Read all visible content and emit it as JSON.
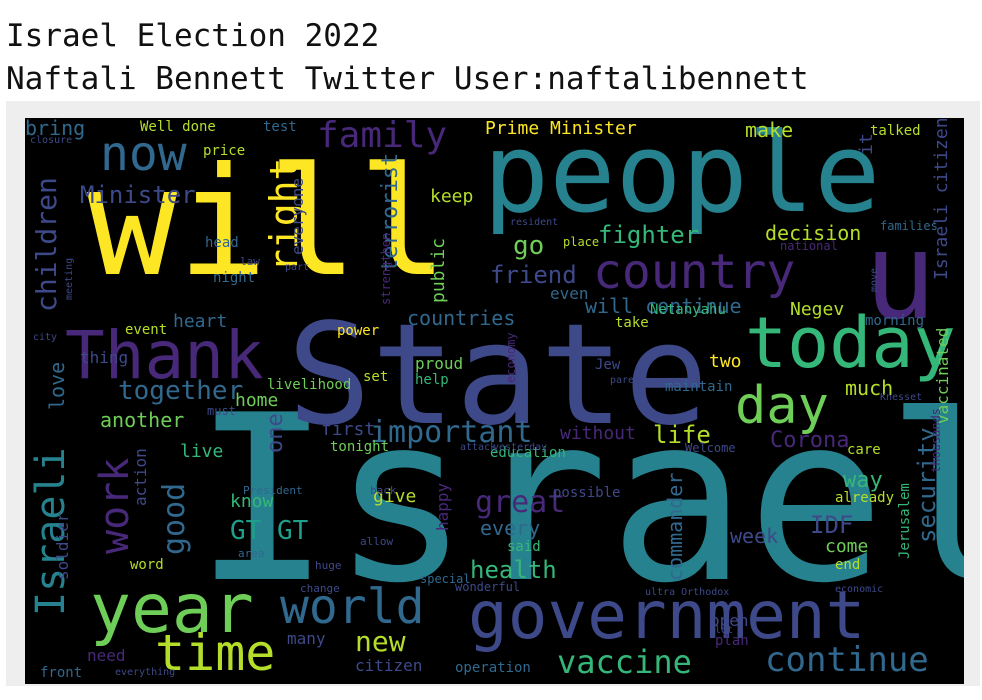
{
  "header": {
    "title_line1": "Israel Election 2022",
    "title_line2": "Naftali Bennett Twitter User:naftalibennett"
  },
  "palette": {
    "yellow": "#fde725",
    "lime": "#b5de2b",
    "green": "#6ece58",
    "teal_green": "#35b779",
    "teal": "#1f9e89",
    "cyan": "#26828e",
    "blue": "#31688e",
    "indigo": "#3e4989",
    "purple": "#482878",
    "dark_purple": "#440154"
  },
  "wordcloud": {
    "words": [
      {
        "text": "Israel",
        "color": "#26828e"
      },
      {
        "text": "State",
        "color": "#3e4989"
      },
      {
        "text": "will",
        "color": "#fde725"
      },
      {
        "text": "people",
        "color": "#26828e"
      },
      {
        "text": "government",
        "color": "#3e4989"
      },
      {
        "text": "u",
        "color": "#482878"
      },
      {
        "text": "Thank",
        "color": "#482878"
      },
      {
        "text": "today",
        "color": "#35b779"
      },
      {
        "text": "year",
        "color": "#6ece58"
      },
      {
        "text": "country",
        "color": "#482878"
      },
      {
        "text": "day",
        "color": "#6ece58"
      },
      {
        "text": "world",
        "color": "#31688e"
      },
      {
        "text": "time",
        "color": "#b5de2b"
      },
      {
        "text": "Israeli",
        "color": "#26828e"
      },
      {
        "text": "right",
        "color": "#fde725"
      },
      {
        "text": "now",
        "color": "#31688e"
      },
      {
        "text": "family",
        "color": "#482878"
      },
      {
        "text": "work",
        "color": "#482878"
      },
      {
        "text": "continue",
        "color": "#31688e"
      },
      {
        "text": "vaccine",
        "color": "#35b779"
      },
      {
        "text": "important",
        "color": "#31688e"
      },
      {
        "text": "together",
        "color": "#31688e"
      },
      {
        "text": "children",
        "color": "#3e4989"
      },
      {
        "text": "Minister",
        "color": "#3e4989"
      },
      {
        "text": "good",
        "color": "#31688e"
      },
      {
        "text": "new",
        "color": "#b5de2b"
      },
      {
        "text": "fighter",
        "color": "#35b779"
      },
      {
        "text": "decision",
        "color": "#b5de2b"
      },
      {
        "text": "security",
        "color": "#31688e"
      },
      {
        "text": "IDF",
        "color": "#3e4989"
      },
      {
        "text": "Corona",
        "color": "#482878"
      },
      {
        "text": "life",
        "color": "#b5de2b"
      },
      {
        "text": "great",
        "color": "#482878"
      },
      {
        "text": "health",
        "color": "#35b779"
      },
      {
        "text": "will continue",
        "color": "#31688e"
      },
      {
        "text": "Prime Minister",
        "color": "#fde725"
      },
      {
        "text": "friend",
        "color": "#3e4989"
      },
      {
        "text": "terrorist",
        "color": "#31688e"
      },
      {
        "text": "go",
        "color": "#6ece58"
      },
      {
        "text": "way",
        "color": "#35b779"
      },
      {
        "text": "one",
        "color": "#3e4989"
      },
      {
        "text": "GT GT",
        "color": "#1f9e89"
      },
      {
        "text": "commander",
        "color": "#31688e"
      },
      {
        "text": "countries",
        "color": "#31688e"
      },
      {
        "text": "much",
        "color": "#b5de2b"
      },
      {
        "text": "two",
        "color": "#fde725"
      },
      {
        "text": "another",
        "color": "#6ece58"
      },
      {
        "text": "first",
        "color": "#3e4989"
      },
      {
        "text": "Israeli citizen",
        "color": "#3e4989"
      },
      {
        "text": "vaccinated",
        "color": "#6ece58"
      },
      {
        "text": "love",
        "color": "#31688e"
      },
      {
        "text": "home",
        "color": "#6ece58"
      },
      {
        "text": "public",
        "color": "#6ece58"
      },
      {
        "text": "keep",
        "color": "#b5de2b"
      },
      {
        "text": "make",
        "color": "#b5de2b"
      },
      {
        "text": "everyone",
        "color": "#3e4989"
      },
      {
        "text": "Negev",
        "color": "#b5de2b"
      },
      {
        "text": "week",
        "color": "#3e4989"
      },
      {
        "text": "come",
        "color": "#6ece58"
      },
      {
        "text": "every",
        "color": "#31688e"
      },
      {
        "text": "bring",
        "color": "#31688e"
      },
      {
        "text": "soldier",
        "color": "#3e4989"
      },
      {
        "text": "action",
        "color": "#3e4989"
      },
      {
        "text": "without",
        "color": "#482878"
      },
      {
        "text": "heart",
        "color": "#31688e"
      },
      {
        "text": "live",
        "color": "#35b779"
      },
      {
        "text": "give",
        "color": "#b5de2b"
      },
      {
        "text": "know",
        "color": "#35b779"
      },
      {
        "text": "open",
        "color": "#3e4989"
      },
      {
        "text": "need",
        "color": "#482878"
      },
      {
        "text": "citizen",
        "color": "#3e4989"
      },
      {
        "text": "many",
        "color": "#3e4989"
      },
      {
        "text": "it",
        "color": "#3e4989"
      },
      {
        "text": "thing",
        "color": "#3e4989"
      },
      {
        "text": "even",
        "color": "#31688e"
      },
      {
        "text": "happy",
        "color": "#482878"
      },
      {
        "text": "Well done",
        "color": "#b5de2b"
      },
      {
        "text": "test",
        "color": "#31688e"
      },
      {
        "text": "talked",
        "color": "#b5de2b"
      },
      {
        "text": "price",
        "color": "#b5de2b"
      },
      {
        "text": "livelihood",
        "color": "#6ece58"
      },
      {
        "text": "proud",
        "color": "#6ece58"
      },
      {
        "text": "set",
        "color": "#b5de2b"
      },
      {
        "text": "help",
        "color": "#35b779"
      },
      {
        "text": "power",
        "color": "#fde725"
      },
      {
        "text": "take",
        "color": "#b5de2b"
      },
      {
        "text": "Netanyahu",
        "color": "#35b779"
      },
      {
        "text": "morning",
        "color": "#31688e"
      },
      {
        "text": "tonight",
        "color": "#6ece58"
      },
      {
        "text": "education",
        "color": "#35b779"
      },
      {
        "text": "possible",
        "color": "#3e4989"
      },
      {
        "text": "said",
        "color": "#35b779"
      },
      {
        "text": "wonderful",
        "color": "#3e4989"
      },
      {
        "text": "operation",
        "color": "#31688e"
      },
      {
        "text": "plan",
        "color": "#482878"
      },
      {
        "text": "maintain",
        "color": "#31688e"
      },
      {
        "text": "care",
        "color": "#b5de2b"
      },
      {
        "text": "already",
        "color": "#b5de2b"
      },
      {
        "text": "Jerusalem",
        "color": "#35b779"
      },
      {
        "text": "end",
        "color": "#b5de2b"
      },
      {
        "text": "word",
        "color": "#b5de2b"
      },
      {
        "text": "front",
        "color": "#31688e"
      },
      {
        "text": "place",
        "color": "#b5de2b"
      },
      {
        "text": "head",
        "color": "#31688e"
      },
      {
        "text": "night",
        "color": "#31688e"
      },
      {
        "text": "event",
        "color": "#b5de2b"
      },
      {
        "text": "strengthen",
        "color": "#482878"
      },
      {
        "text": "Jew",
        "color": "#3e4989"
      },
      {
        "text": "must",
        "color": "#3e4989"
      },
      {
        "text": "special",
        "color": "#31688e"
      },
      {
        "text": "economy",
        "color": "#482878"
      },
      {
        "text": "thousands",
        "color": "#482878"
      },
      {
        "text": "families",
        "color": "#31688e"
      },
      {
        "text": "national",
        "color": "#482878"
      },
      {
        "text": "Welcome",
        "color": "#3e4989"
      },
      {
        "text": "President",
        "color": "#31688e"
      },
      {
        "text": "area",
        "color": "#31688e"
      },
      {
        "text": "back",
        "color": "#3e4989"
      },
      {
        "text": "allow",
        "color": "#3e4989"
      },
      {
        "text": "change",
        "color": "#3e4989"
      },
      {
        "text": "huge",
        "color": "#3e4989"
      },
      {
        "text": "ultra Orthodox",
        "color": "#3e4989"
      },
      {
        "text": "resident",
        "color": "#3e4989"
      },
      {
        "text": "closure",
        "color": "#3e4989"
      },
      {
        "text": "law",
        "color": "#3e4989"
      },
      {
        "text": "part",
        "color": "#3e4989"
      },
      {
        "text": "city",
        "color": "#3e4989"
      },
      {
        "text": "meeting",
        "color": "#3e4989"
      },
      {
        "text": "parent",
        "color": "#3e4989"
      },
      {
        "text": "move",
        "color": "#3e4989"
      },
      {
        "text": "Knesset",
        "color": "#3e4989"
      },
      {
        "text": "economic",
        "color": "#3e4989"
      },
      {
        "text": "attack",
        "color": "#3e4989"
      },
      {
        "text": "yesterday",
        "color": "#3e4989"
      },
      {
        "text": "lot",
        "color": "#3e4989"
      },
      {
        "text": "everything",
        "color": "#3e4989"
      }
    ]
  }
}
